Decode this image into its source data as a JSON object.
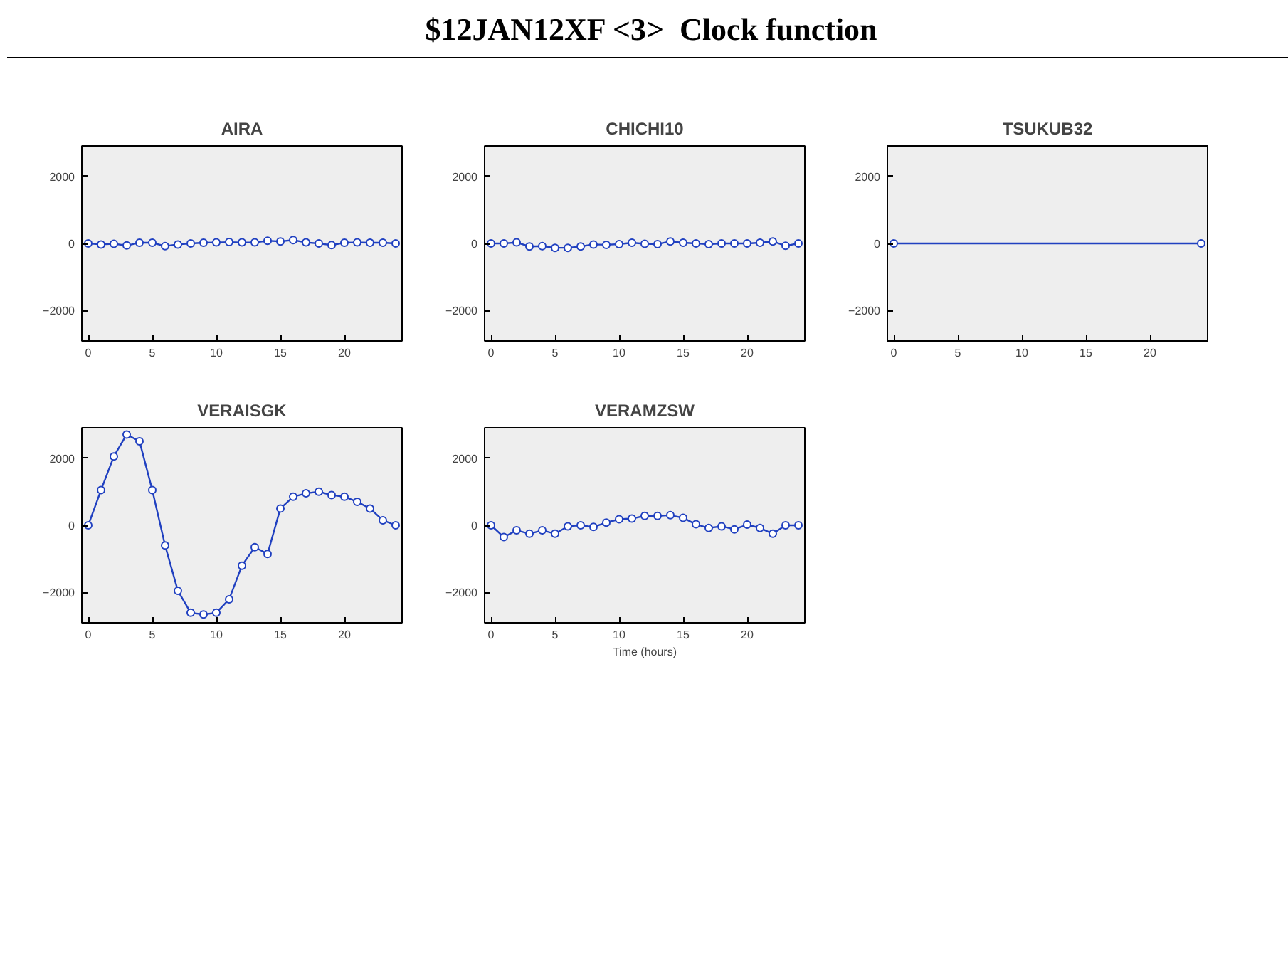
{
  "chart_data": [
    {
      "type": "line",
      "title": "AIRA",
      "annotations": [
        "$12JAN12XF <3>  Clock function"
      ],
      "x": [
        0,
        1,
        2,
        3,
        4,
        5,
        6,
        7,
        8,
        9,
        10,
        11,
        12,
        13,
        14,
        15,
        16,
        17,
        18,
        19,
        20,
        21,
        22,
        23,
        24
      ],
      "series": [
        {
          "color": "#2040c0",
          "values": [
            0,
            -30,
            -10,
            -60,
            20,
            20,
            -80,
            -30,
            0,
            20,
            30,
            40,
            30,
            30,
            80,
            60,
            100,
            30,
            0,
            -50,
            20,
            30,
            20,
            20,
            0
          ]
        }
      ],
      "xlim": [
        -0.5,
        24.5
      ],
      "ylim": [
        -2900,
        2900
      ],
      "xticks": [
        0,
        5,
        10,
        15,
        20
      ],
      "yticks": [
        -2000,
        0,
        2000
      ],
      "marker": "circle",
      "line_style": "solid",
      "grid": false
    },
    {
      "type": "line",
      "title": "CHICHI10",
      "x": [
        0,
        1,
        2,
        3,
        4,
        5,
        6,
        7,
        8,
        9,
        10,
        11,
        12,
        13,
        14,
        15,
        16,
        17,
        18,
        19,
        20,
        21,
        22,
        23,
        24
      ],
      "series": [
        {
          "color": "#2040c0",
          "values": [
            0,
            0,
            30,
            -90,
            -80,
            -130,
            -130,
            -90,
            -30,
            -40,
            -20,
            20,
            -10,
            -20,
            60,
            20,
            0,
            -20,
            0,
            0,
            0,
            20,
            60,
            -70,
            0
          ]
        }
      ],
      "xlim": [
        -0.5,
        24.5
      ],
      "ylim": [
        -2900,
        2900
      ],
      "xticks": [
        0,
        5,
        10,
        15,
        20
      ],
      "yticks": [
        -2000,
        0,
        2000
      ],
      "marker": "circle",
      "line_style": "solid",
      "grid": false
    },
    {
      "type": "line",
      "title": "TSUKUB32",
      "x": [
        0,
        24
      ],
      "series": [
        {
          "color": "#2040c0",
          "values": [
            0,
            0
          ]
        }
      ],
      "xlim": [
        -0.5,
        24.5
      ],
      "ylim": [
        -2900,
        2900
      ],
      "xticks": [
        0,
        5,
        10,
        15,
        20
      ],
      "yticks": [
        -2000,
        0,
        2000
      ],
      "marker": "circle",
      "line_style": "solid",
      "grid": false
    },
    {
      "type": "line",
      "title": "VERAISGK",
      "x": [
        0,
        1,
        2,
        3,
        4,
        5,
        6,
        7,
        8,
        9,
        10,
        11,
        12,
        13,
        14,
        15,
        16,
        17,
        18,
        19,
        20,
        21,
        22,
        23,
        24
      ],
      "series": [
        {
          "color": "#2040c0",
          "values": [
            0,
            1050,
            2050,
            2700,
            2500,
            1050,
            -600,
            -1950,
            -2600,
            -2650,
            -2600,
            -2200,
            -1200,
            -650,
            -850,
            500,
            850,
            950,
            1000,
            900,
            850,
            700,
            500,
            150,
            0
          ]
        }
      ],
      "xlim": [
        -0.5,
        24.5
      ],
      "ylim": [
        -2900,
        2900
      ],
      "xticks": [
        0,
        5,
        10,
        15,
        20
      ],
      "yticks": [
        -2000,
        0,
        2000
      ],
      "marker": "circle",
      "line_style": "solid",
      "grid": false
    },
    {
      "type": "line",
      "title": "VERAMZSW",
      "xlabel": "Time (hours)",
      "x": [
        0,
        1,
        2,
        3,
        4,
        5,
        6,
        7,
        8,
        9,
        10,
        11,
        12,
        13,
        14,
        15,
        16,
        17,
        18,
        19,
        20,
        21,
        22,
        23,
        24
      ],
      "series": [
        {
          "color": "#2040c0",
          "values": [
            0,
            -350,
            -150,
            -250,
            -150,
            -250,
            -30,
            0,
            -50,
            80,
            180,
            200,
            280,
            280,
            300,
            220,
            30,
            -80,
            -30,
            -120,
            20,
            -80,
            -250,
            0,
            0
          ]
        }
      ],
      "xlim": [
        -0.5,
        24.5
      ],
      "ylim": [
        -2900,
        2900
      ],
      "xticks": [
        0,
        5,
        10,
        15,
        20
      ],
      "yticks": [
        -2000,
        0,
        2000
      ],
      "marker": "circle",
      "line_style": "solid",
      "grid": false
    }
  ]
}
